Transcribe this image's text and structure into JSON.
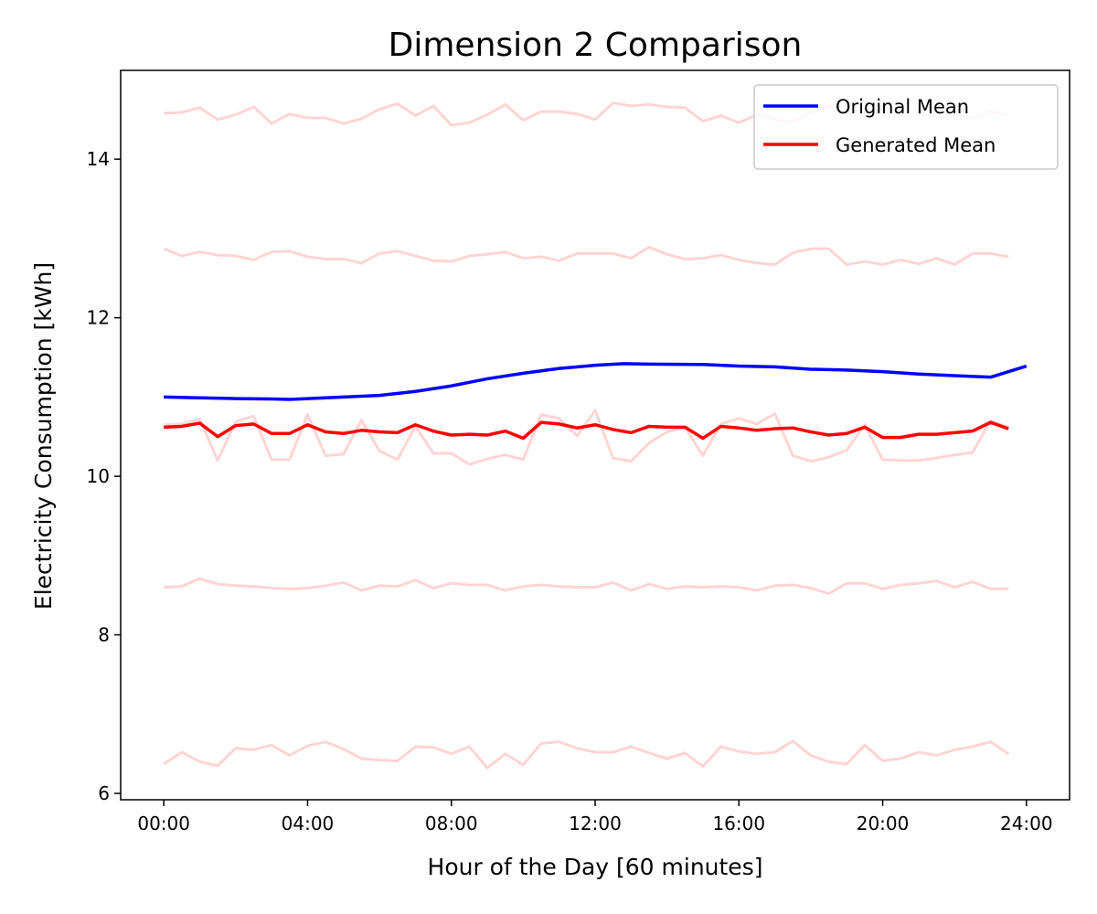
{
  "chart_data": {
    "type": "line",
    "title": "Dimension 2 Comparison",
    "xlabel": "Hour of the Day [60 minutes]",
    "ylabel": "Electricity Consumption [kWh]",
    "xlim": [
      -1.2,
      25.2
    ],
    "ylim": [
      5.92,
      15.12
    ],
    "x_ticks": [
      0,
      4,
      8,
      12,
      16,
      20,
      24
    ],
    "x_tick_labels": [
      "00:00",
      "04:00",
      "08:00",
      "12:00",
      "16:00",
      "20:00",
      "24:00"
    ],
    "y_ticks": [
      6,
      8,
      10,
      12,
      14
    ],
    "y_tick_labels": [
      "6",
      "8",
      "10",
      "12",
      "14"
    ],
    "grid": false,
    "legend_position": "top-right",
    "legend": [
      {
        "label": "Original Mean",
        "color": "#0000ff"
      },
      {
        "label": "Generated Mean",
        "color": "#ff0000"
      }
    ],
    "x_step_hours": 0.5,
    "background_series_color": "#ff0000",
    "background_series_opacity": 0.17,
    "series": [
      {
        "name": "Original Mean",
        "color": "#0000ff",
        "x": [
          0,
          1,
          2,
          3,
          3.5,
          4,
          5,
          6,
          7,
          8,
          9,
          10,
          11,
          12,
          12.8,
          13.5,
          15,
          16,
          17,
          18,
          19,
          20,
          21,
          22,
          23,
          24
        ],
        "values": [
          11.0,
          10.99,
          10.98,
          10.975,
          10.97,
          10.98,
          11.0,
          11.02,
          11.07,
          11.14,
          11.23,
          11.3,
          11.36,
          11.4,
          11.42,
          11.415,
          11.41,
          11.39,
          11.38,
          11.35,
          11.34,
          11.32,
          11.29,
          11.27,
          11.25,
          11.39
        ]
      },
      {
        "name": "Generated Mean",
        "color": "#ff0000",
        "values": [
          10.62,
          10.63,
          10.67,
          10.5,
          10.64,
          10.66,
          10.54,
          10.54,
          10.65,
          10.56,
          10.54,
          10.58,
          10.56,
          10.55,
          10.65,
          10.57,
          10.52,
          10.53,
          10.52,
          10.57,
          10.48,
          10.68,
          10.66,
          10.61,
          10.65,
          10.59,
          10.55,
          10.63,
          10.62,
          10.62,
          10.48,
          10.63,
          10.61,
          10.58,
          10.6,
          10.61,
          10.56,
          10.52,
          10.54,
          10.62,
          10.49,
          10.49,
          10.53,
          10.53,
          10.55,
          10.57,
          10.68,
          10.6
        ]
      }
    ],
    "background_series": [
      [
        14.58,
        14.59,
        14.65,
        14.5,
        14.56,
        14.66,
        14.45,
        14.57,
        14.52,
        14.52,
        14.45,
        14.51,
        14.63,
        14.7,
        14.55,
        14.67,
        14.43,
        14.46,
        14.56,
        14.69,
        14.49,
        14.6,
        14.6,
        14.57,
        14.5,
        14.71,
        14.67,
        14.69,
        14.66,
        14.65,
        14.48,
        14.55,
        14.46,
        14.56,
        14.5,
        14.47,
        14.6,
        14.66,
        14.66,
        14.57,
        14.63,
        14.54,
        14.6,
        14.52,
        14.56,
        14.52,
        14.6,
        14.56
      ],
      [
        12.87,
        12.78,
        12.83,
        12.79,
        12.78,
        12.73,
        12.83,
        12.84,
        12.77,
        12.74,
        12.74,
        12.69,
        12.81,
        12.84,
        12.78,
        12.72,
        12.71,
        12.78,
        12.8,
        12.83,
        12.75,
        12.77,
        12.72,
        12.81,
        12.81,
        12.81,
        12.75,
        12.89,
        12.8,
        12.74,
        12.75,
        12.79,
        12.73,
        12.69,
        12.67,
        12.82,
        12.87,
        12.87,
        12.67,
        12.71,
        12.67,
        12.73,
        12.68,
        12.75,
        12.67,
        12.81,
        12.81,
        12.77
      ],
      [
        10.65,
        10.66,
        10.72,
        10.2,
        10.69,
        10.76,
        10.21,
        10.21,
        10.78,
        10.26,
        10.28,
        10.71,
        10.32,
        10.21,
        10.63,
        10.29,
        10.29,
        10.15,
        10.22,
        10.27,
        10.21,
        10.78,
        10.73,
        10.51,
        10.83,
        10.23,
        10.19,
        10.42,
        10.56,
        10.62,
        10.26,
        10.66,
        10.73,
        10.66,
        10.79,
        10.26,
        10.19,
        10.24,
        10.33,
        10.65,
        10.21,
        10.2,
        10.2,
        10.23,
        10.27,
        10.3,
        10.7,
        10.62
      ],
      [
        8.6,
        8.61,
        8.71,
        8.64,
        8.62,
        8.61,
        8.59,
        8.58,
        8.59,
        8.62,
        8.66,
        8.56,
        8.62,
        8.61,
        8.69,
        8.59,
        8.65,
        8.63,
        8.63,
        8.56,
        8.61,
        8.63,
        8.61,
        8.6,
        8.6,
        8.66,
        8.56,
        8.64,
        8.58,
        8.61,
        8.6,
        8.61,
        8.6,
        8.56,
        8.62,
        8.63,
        8.59,
        8.52,
        8.65,
        8.65,
        8.58,
        8.63,
        8.65,
        8.68,
        8.6,
        8.67,
        8.58,
        8.58
      ],
      [
        6.37,
        6.52,
        6.4,
        6.35,
        6.57,
        6.55,
        6.61,
        6.48,
        6.6,
        6.65,
        6.56,
        6.44,
        6.42,
        6.41,
        6.59,
        6.58,
        6.5,
        6.59,
        6.32,
        6.5,
        6.36,
        6.63,
        6.65,
        6.57,
        6.52,
        6.52,
        6.59,
        6.51,
        6.44,
        6.51,
        6.34,
        6.59,
        6.53,
        6.5,
        6.52,
        6.66,
        6.48,
        6.4,
        6.37,
        6.61,
        6.41,
        6.44,
        6.52,
        6.48,
        6.55,
        6.59,
        6.65,
        6.5
      ]
    ]
  }
}
